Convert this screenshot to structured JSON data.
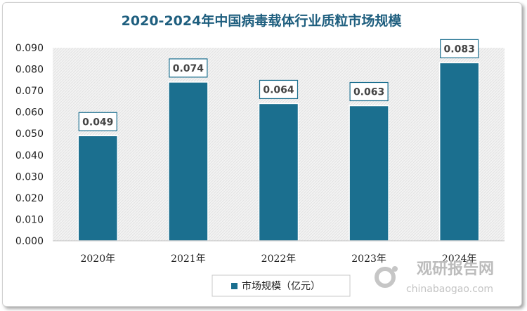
{
  "chart_data": {
    "type": "bar",
    "title": "2020-2024年中国病毒载体行业质粒市场规模",
    "categories": [
      "2020年",
      "2021年",
      "2022年",
      "2023年",
      "2024年"
    ],
    "series": [
      {
        "name": "市场规模（亿元）",
        "values": [
          0.049,
          0.074,
          0.064,
          0.063,
          0.083
        ],
        "labels": [
          "0.049",
          "0.074",
          "0.064",
          "0.063",
          "0.083"
        ],
        "color": "#1b6f8f"
      }
    ],
    "yticks": [
      "0.000",
      "0.010",
      "0.020",
      "0.030",
      "0.040",
      "0.050",
      "0.060",
      "0.070",
      "0.080",
      "0.090"
    ],
    "ylim": [
      0,
      0.09
    ],
    "xlabel": "",
    "ylabel": "",
    "legend_position": "bottom-center",
    "plot_background": "hatched-light-gray"
  },
  "watermark": {
    "logo": "观研报告网",
    "site": "chinabaogao.com"
  }
}
